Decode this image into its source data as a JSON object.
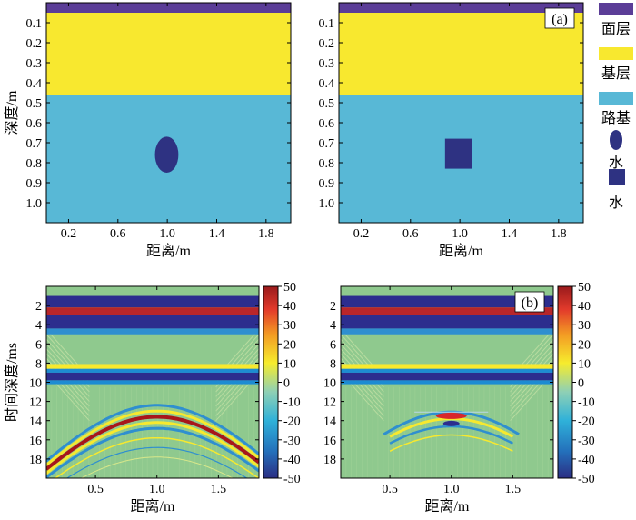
{
  "chart_data": [
    {
      "type": "heatmap",
      "panel": "model-left",
      "annotation": "",
      "xlabel": "距离/m",
      "ylabel": "深度/m",
      "xlim": [
        0.02,
        2.0
      ],
      "ylim": [
        1.1,
        0.0
      ],
      "xticks": [
        0.2,
        0.6,
        1.0,
        1.4,
        1.8
      ],
      "xtick_labels": [
        "0.2",
        "0.6",
        "1.0",
        "1.4",
        "1.8"
      ],
      "yticks": [
        0.1,
        0.2,
        0.3,
        0.4,
        0.5,
        0.6,
        0.7,
        0.8,
        0.9,
        1.0
      ],
      "ytick_labels": [
        "0.1",
        "0.2",
        "0.3",
        "0.4",
        "0.5",
        "0.6",
        "0.7",
        "0.8",
        "0.9",
        "1.0"
      ],
      "layers": [
        {
          "name": "面层",
          "depth": [
            0.0,
            0.05
          ],
          "color": "#5b3d97"
        },
        {
          "name": "基层",
          "depth": [
            0.05,
            0.46
          ],
          "color": "#f8e82f"
        },
        {
          "name": "路基",
          "depth": [
            0.46,
            1.1
          ],
          "color": "#58b8d6"
        }
      ],
      "anomaly": {
        "shape": "ellipse",
        "x": [
          0.9,
          1.09
        ],
        "depth": [
          0.67,
          0.85
        ],
        "label": "水",
        "color": "#2e3282"
      }
    },
    {
      "type": "heatmap",
      "panel": "model-right",
      "annotation": "(a)",
      "xlabel": "距离/m",
      "ylabel": "",
      "xlim": [
        0.02,
        2.0
      ],
      "ylim": [
        1.1,
        0.0
      ],
      "xticks": [
        0.2,
        0.6,
        1.0,
        1.4,
        1.8
      ],
      "xtick_labels": [
        "0.2",
        "0.6",
        "1.0",
        "1.4",
        "1.8"
      ],
      "yticks": [
        0.1,
        0.2,
        0.3,
        0.4,
        0.5,
        0.6,
        0.7,
        0.8,
        0.9,
        1.0
      ],
      "ytick_labels": [
        "0.1",
        "0.2",
        "0.3",
        "0.4",
        "0.5",
        "0.6",
        "0.7",
        "0.8",
        "0.9",
        "1.0"
      ],
      "layers": [
        {
          "name": "面层",
          "depth": [
            0.0,
            0.05
          ],
          "color": "#5b3d97"
        },
        {
          "name": "基层",
          "depth": [
            0.05,
            0.46
          ],
          "color": "#f8e82f"
        },
        {
          "name": "路基",
          "depth": [
            0.46,
            1.1
          ],
          "color": "#58b8d6"
        }
      ],
      "anomaly": {
        "shape": "square",
        "x": [
          0.88,
          1.1
        ],
        "depth": [
          0.68,
          0.83
        ],
        "label": "水",
        "color": "#2e3282"
      }
    },
    {
      "type": "heatmap",
      "panel": "radargram-left",
      "annotation": "",
      "xlabel": "距离/m",
      "ylabel": "时间深度/ms",
      "xlim": [
        0.1,
        1.83
      ],
      "ylim": [
        20,
        0
      ],
      "xticks": [
        0.5,
        1.0,
        1.5
      ],
      "xtick_labels": [
        "0.5",
        "1.0",
        "1.5"
      ],
      "yticks": [
        2,
        4,
        6,
        8,
        10,
        12,
        14,
        16,
        18
      ],
      "ytick_labels": [
        "2",
        "4",
        "6",
        "8",
        "10",
        "12",
        "14",
        "16",
        "18"
      ],
      "reflections": [
        {
          "kind": "band",
          "t": [
            1.0,
            2.2
          ],
          "color": "#2c2d8e"
        },
        {
          "kind": "band",
          "t": [
            2.2,
            3.0
          ],
          "color": "#b8262a"
        },
        {
          "kind": "band",
          "t": [
            3.0,
            4.4
          ],
          "color": "#2c2d8e"
        },
        {
          "kind": "band",
          "t": [
            4.4,
            5.0
          ],
          "color": "#2f8fcf"
        },
        {
          "kind": "band",
          "t": [
            8.1,
            8.6
          ],
          "color": "#f7e92e"
        },
        {
          "kind": "band",
          "t": [
            8.6,
            9.0
          ],
          "color": "#1d8cd2"
        },
        {
          "kind": "band",
          "t": [
            9.0,
            9.8
          ],
          "color": "#2c2d8e"
        },
        {
          "kind": "band",
          "t": [
            9.8,
            10.2
          ],
          "color": "#1d8cd2"
        },
        {
          "kind": "hyperbola",
          "apex_x": 1.0,
          "apex_t": 13.6,
          "color": "#a8161a"
        }
      ]
    },
    {
      "type": "heatmap",
      "panel": "radargram-right",
      "annotation": "(b)",
      "xlabel": "距离/m",
      "ylabel": "",
      "xlim": [
        0.1,
        1.83
      ],
      "ylim": [
        20,
        0
      ],
      "xticks": [
        0.5,
        1.0,
        1.5
      ],
      "xtick_labels": [
        "0.5",
        "1.0",
        "1.5"
      ],
      "yticks": [
        2,
        4,
        6,
        8,
        10,
        12,
        14,
        16,
        18
      ],
      "ytick_labels": [
        "2",
        "4",
        "6",
        "8",
        "10",
        "12",
        "14",
        "16",
        "18"
      ],
      "reflections": [
        {
          "kind": "band",
          "t": [
            1.0,
            2.2
          ],
          "color": "#2c2d8e"
        },
        {
          "kind": "band",
          "t": [
            2.2,
            3.0
          ],
          "color": "#b8262a"
        },
        {
          "kind": "band",
          "t": [
            3.0,
            4.4
          ],
          "color": "#2c2d8e"
        },
        {
          "kind": "band",
          "t": [
            4.4,
            5.0
          ],
          "color": "#2f8fcf"
        },
        {
          "kind": "band",
          "t": [
            8.1,
            8.6
          ],
          "color": "#f7e92e"
        },
        {
          "kind": "band",
          "t": [
            8.6,
            9.0
          ],
          "color": "#1d8cd2"
        },
        {
          "kind": "band",
          "t": [
            9.0,
            9.8
          ],
          "color": "#2c2d8e"
        },
        {
          "kind": "band",
          "t": [
            9.8,
            10.2
          ],
          "color": "#1d8cd2"
        },
        {
          "kind": "hyperbola",
          "apex_x": 1.0,
          "apex_t": 13.5,
          "color": "#d8262a",
          "truncated": true
        }
      ]
    }
  ],
  "legend": {
    "items": [
      {
        "label": "面层",
        "symbol": "rect",
        "color": "#5b3d97"
      },
      {
        "label": "基层",
        "symbol": "rect",
        "color": "#f8e82f"
      },
      {
        "label": "路基",
        "symbol": "rect",
        "color": "#58b8d6"
      },
      {
        "label": "水",
        "symbol": "ellipse",
        "color": "#2e3282"
      },
      {
        "label": "水",
        "symbol": "square",
        "color": "#2e3282"
      }
    ]
  },
  "colorbar": {
    "range": [
      -50,
      50
    ],
    "ticks": [
      50,
      40,
      30,
      20,
      10,
      0,
      -10,
      -20,
      -30,
      -40,
      -50
    ],
    "tick_labels": [
      "50",
      "40",
      "30",
      "20",
      "10",
      "0",
      "-10",
      "-20",
      "-30",
      "-40",
      "-50"
    ],
    "colors": [
      "#2b2e83",
      "#2470bb",
      "#2fb1d9",
      "#8ed0b5",
      "#f6ec2d",
      "#f39b24",
      "#e23a2b",
      "#9a1a1c"
    ]
  }
}
